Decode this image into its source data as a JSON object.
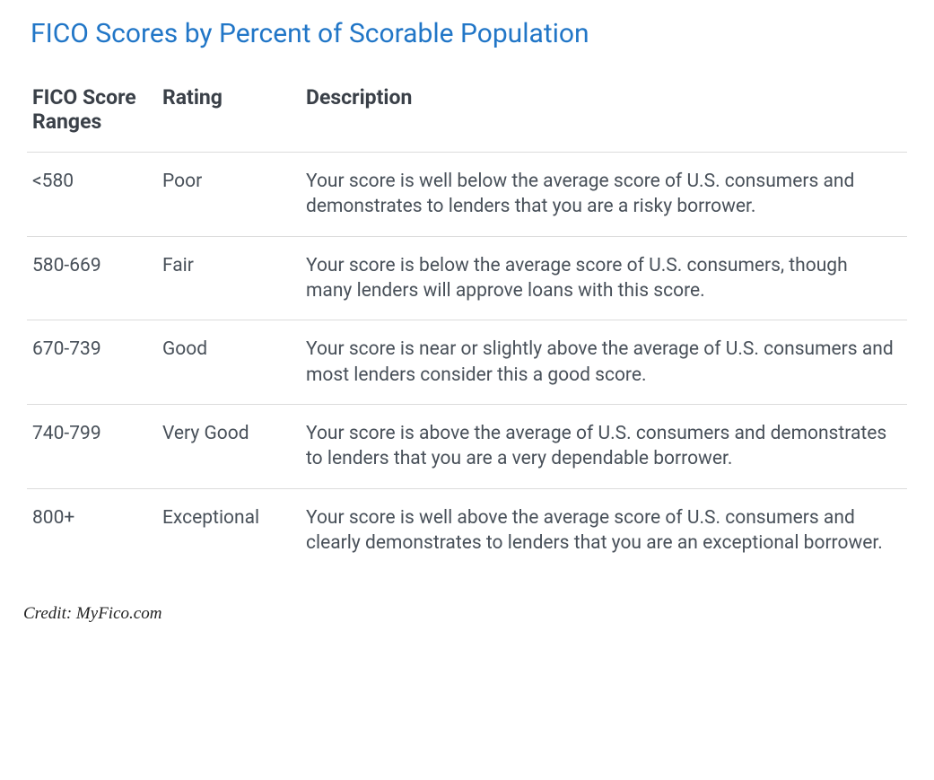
{
  "title": "FICO Scores by Percent of Scorable Population",
  "columns": {
    "range": "FICO Score Ranges",
    "rating": "Rating",
    "description": "Description"
  },
  "rows": [
    {
      "range": "<580",
      "rating": "Poor",
      "description": "Your score is well below the average score of U.S. consumers and demonstrates to lenders that you are a risky borrower."
    },
    {
      "range": "580-669",
      "rating": "Fair",
      "description": "Your score is below the average score of U.S. consumers, though many lenders will approve loans with this score."
    },
    {
      "range": "670-739",
      "rating": "Good",
      "description": "Your score is near or slightly above the average of U.S. consumers and most lenders consider this a good score."
    },
    {
      "range": "740-799",
      "rating": "Very Good",
      "description": "Your score is above the average of U.S. consumers and demonstrates to lenders that you are a very dependable borrower."
    },
    {
      "range": "800+",
      "rating": "Exceptional",
      "description": "Your score is well above the average score of U.S. consumers and clearly demonstrates to lenders that you are an exceptional borrower."
    }
  ],
  "credit": "Credit: MyFico.com",
  "styles": {
    "title_color": "#2176c7",
    "title_fontsize": 30,
    "header_color": "#3a4048",
    "header_fontsize": 23,
    "body_color": "#485059",
    "body_fontsize": 21,
    "border_color": "#dcdcdc",
    "background_color": "#ffffff",
    "credit_fontsize": 19
  }
}
